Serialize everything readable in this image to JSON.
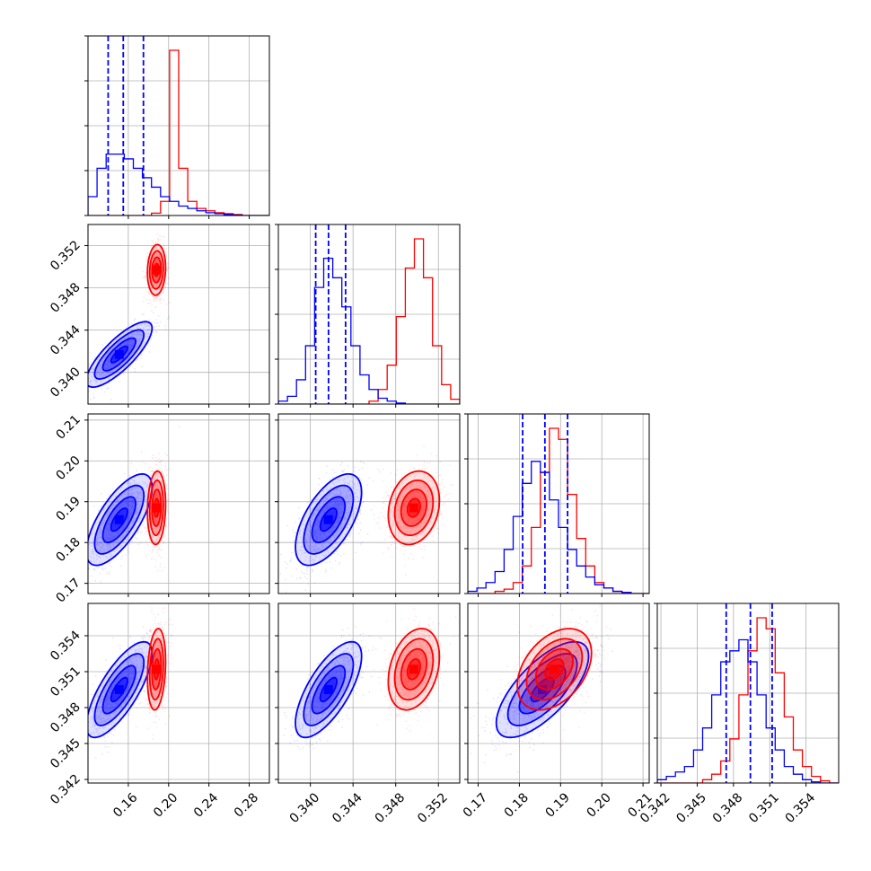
{
  "chart_data": {
    "type": "corner",
    "parameters": [
      {
        "range": [
          0.12,
          0.3
        ],
        "ticks": [
          0.16,
          0.2,
          0.24,
          0.28
        ],
        "labels": [
          "0.16",
          "0.20",
          "0.24",
          "0.28"
        ]
      },
      {
        "range": [
          0.337,
          0.354
        ],
        "ticks": [
          0.34,
          0.344,
          0.348,
          0.352
        ],
        "labels": [
          "0.340",
          "0.344",
          "0.348",
          "0.352"
        ]
      },
      {
        "range": [
          0.1675,
          0.2115
        ],
        "ticks": [
          0.17,
          0.18,
          0.19,
          0.2,
          0.21
        ],
        "labels": [
          "0.17",
          "0.18",
          "0.19",
          "0.20",
          "0.21"
        ]
      },
      {
        "range": [
          0.3417,
          0.3567
        ],
        "ticks": [
          0.342,
          0.345,
          0.348,
          0.351,
          0.354
        ],
        "labels": [
          "0.342",
          "0.345",
          "0.348",
          "0.351",
          "0.354"
        ]
      }
    ],
    "grid": true,
    "series": [
      {
        "color": "#0000ff",
        "means": [
          0.151,
          0.3417,
          0.1856,
          0.3495
        ],
        "sigmas": [
          0.0163,
          0.00155,
          0.0056,
          0.002
        ],
        "correlation": [
          [
            1,
            0.8,
            0.7,
            0.75
          ],
          [
            0.8,
            1,
            0.6,
            0.7
          ],
          [
            0.7,
            0.6,
            1,
            0.7
          ],
          [
            0.75,
            0.7,
            0.7,
            1
          ]
        ],
        "quantiles": [
          [
            0.14,
            0.155,
            0.175
          ],
          [
            0.3405,
            0.3417,
            0.3433
          ],
          [
            0.1808,
            0.1862,
            0.1917
          ],
          [
            0.3474,
            0.3494,
            0.3512
          ]
        ],
        "hist": [
          [
            4,
            10,
            13,
            13,
            12,
            10,
            8,
            6,
            4,
            3,
            2,
            1.5,
            1,
            0.6,
            0.4,
            0.2,
            0.1,
            0,
            0,
            0
          ],
          [
            0.3,
            0.8,
            2.5,
            6,
            12,
            15,
            13,
            10,
            6,
            3,
            1.5,
            0.6,
            0.3,
            0.1,
            0,
            0,
            0,
            0,
            0,
            0
          ],
          [
            0.2,
            0.5,
            1,
            2,
            4,
            7,
            10,
            12,
            11,
            8.5,
            6,
            4,
            2.5,
            1.5,
            0.8,
            0.5,
            0.2,
            0.1,
            0,
            0
          ],
          [
            0.3,
            0.6,
            1,
            1.5,
            3,
            5,
            8,
            11,
            12,
            13,
            11,
            8,
            5,
            3,
            1.5,
            0.8,
            0.3,
            0.1,
            0,
            0
          ]
        ]
      },
      {
        "color": "#ff0000",
        "means": [
          0.188,
          0.3497,
          0.1885,
          0.3512
        ],
        "sigmas": [
          0.0045,
          0.0012,
          0.0045,
          0.0017
        ],
        "correlation": [
          [
            1,
            0.1,
            0.1,
            0.2
          ],
          [
            0.1,
            1,
            0.2,
            0.3
          ],
          [
            0.1,
            0.2,
            1,
            0.4
          ],
          [
            0.2,
            0.3,
            0.4,
            1
          ]
        ],
        "quantiles": [],
        "hist": [
          [
            0,
            0,
            0,
            0,
            0,
            0,
            0,
            0.5,
            3,
            35,
            10,
            3,
            1.5,
            1,
            0.6,
            0.4,
            0.2,
            0,
            0,
            0
          ],
          [
            0,
            0,
            0,
            0,
            0,
            0,
            0,
            0,
            0,
            0,
            0.3,
            1.5,
            4,
            9,
            14,
            17,
            13,
            6,
            2,
            0.5
          ],
          [
            0,
            0,
            0,
            0.2,
            0.4,
            1,
            2.5,
            6,
            11,
            15,
            14,
            9,
            5,
            2.5,
            1,
            0.5,
            0.2,
            0.1,
            0,
            0
          ],
          [
            0,
            0,
            0,
            0,
            0,
            0.3,
            0.8,
            2,
            4,
            8,
            12,
            15,
            14,
            10,
            6,
            3,
            1.5,
            0.6,
            0.2,
            0
          ]
        ]
      }
    ]
  }
}
